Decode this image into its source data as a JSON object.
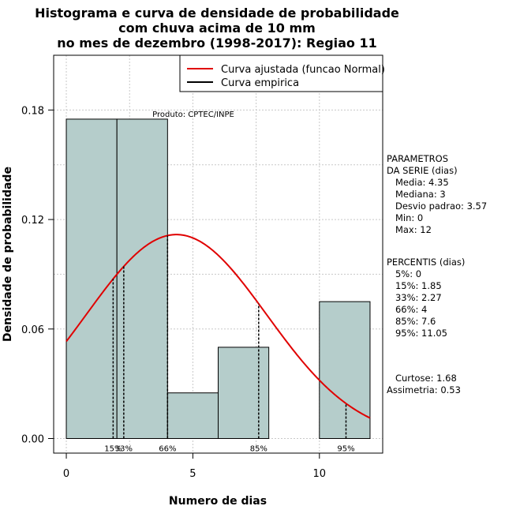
{
  "chart_data": {
    "type": "bar",
    "title_lines": [
      "Histograma e curva de densidade de probabilidade",
      "com chuva acima de 10 mm",
      "no mes de dezembro (1998-2017): Regiao 11"
    ],
    "xlabel": "Numero de dias",
    "ylabel": "Densidade de probabilidade",
    "xlim": [
      -0.5,
      12.5
    ],
    "ylim": [
      -0.008,
      0.21
    ],
    "xticks": [
      0,
      5,
      10
    ],
    "yticks": [
      0.0,
      0.06,
      0.12,
      0.18
    ],
    "ytick_labels": [
      "0.00",
      "0.06",
      "0.12",
      "0.18"
    ],
    "bins": [
      {
        "x0": 0,
        "x1": 2,
        "density": 0.175
      },
      {
        "x0": 2,
        "x1": 4,
        "density": 0.175
      },
      {
        "x0": 4,
        "x1": 6,
        "density": 0.025
      },
      {
        "x0": 6,
        "x1": 8,
        "density": 0.05
      },
      {
        "x0": 8,
        "x1": 10,
        "density": 0.0
      },
      {
        "x0": 10,
        "x1": 12,
        "density": 0.075
      }
    ],
    "bar_color": "#b5cdcb",
    "curve_color": "#e00000",
    "normal_fit": {
      "mean": 4.35,
      "sd": 3.57,
      "range": [
        0,
        12
      ]
    },
    "grid": true,
    "legend": {
      "position": "top-right",
      "entries": [
        {
          "label": "Curva ajustada (funcao Normal)",
          "color": "#e00000"
        },
        {
          "label": "Curva empirica",
          "color": "#000000"
        }
      ]
    },
    "annotation": "Produto: CPTEC/INPE",
    "percentile_lines": [
      {
        "label": "15%",
        "x": 1.85
      },
      {
        "label": "33%",
        "x": 2.27
      },
      {
        "label": "66%",
        "x": 4.0
      },
      {
        "label": "85%",
        "x": 7.6
      },
      {
        "label": "95%",
        "x": 11.05
      }
    ],
    "params_block": [
      "PARAMETROS",
      "DA SERIE (dias)",
      "   Media: 4.35",
      "   Mediana: 3",
      "   Desvio padrao: 3.57",
      "   Min: 0",
      "   Max: 12"
    ],
    "percentis_block": [
      "PERCENTIS (dias)",
      "   5%: 0",
      "   15%: 1.85",
      "   33%: 2.27",
      "   66%: 4",
      "   85%: 7.6",
      "   95%: 11.05"
    ],
    "shape_block": [
      "   Curtose: 1.68",
      "Assimetria: 0.53"
    ]
  }
}
